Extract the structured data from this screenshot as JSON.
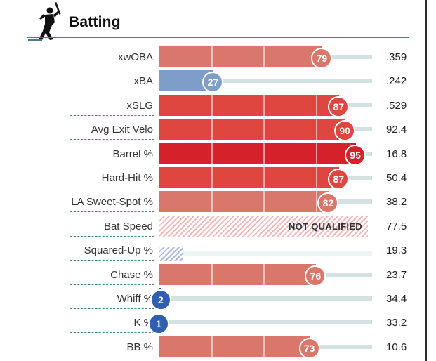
{
  "section": {
    "title": "Batting",
    "icon": "batter-silhouette-icon"
  },
  "colors": {
    "blue_low": "#2f5fae",
    "blue_mid": "#7f9dc9",
    "red_mid": "#d8776a",
    "red_high": "#de463f",
    "red_max": "#d52129",
    "track": "#d5e2e3",
    "rule": "#4a7f86"
  },
  "rows": [
    {
      "label": "xwOBA",
      "percentile": 79,
      "percentile_text": "79",
      "value": ".359"
    },
    {
      "label": "xBA",
      "percentile": 27,
      "percentile_text": "27",
      "value": ".242"
    },
    {
      "label": "xSLG",
      "percentile": 87,
      "percentile_text": "87",
      "value": ".529"
    },
    {
      "label": "Avg Exit Velo",
      "percentile": 90,
      "percentile_text": "90",
      "value": "92.4"
    },
    {
      "label": "Barrel %",
      "percentile": 95,
      "percentile_text": "95",
      "value": "16.8"
    },
    {
      "label": "Hard-Hit %",
      "percentile": 87,
      "percentile_text": "87",
      "value": "50.4"
    },
    {
      "label": "LA Sweet-Spot %",
      "percentile": 82,
      "percentile_text": "82",
      "value": "38.2"
    },
    {
      "label": "Bat Speed",
      "status": "NOT QUALIFIED",
      "value": "77.5"
    },
    {
      "label": "Squared-Up %",
      "status": "",
      "value": "19.3"
    },
    {
      "label": "Chase %",
      "percentile": 76,
      "percentile_text": "76",
      "value": "23.7"
    },
    {
      "label": "Whiff %",
      "percentile": 2,
      "percentile_text": "2",
      "value": "34.4"
    },
    {
      "label": "K %",
      "percentile": 1,
      "percentile_text": "1",
      "value": "33.2"
    },
    {
      "label": "BB %",
      "percentile": 73,
      "percentile_text": "73",
      "value": "10.6"
    }
  ]
}
